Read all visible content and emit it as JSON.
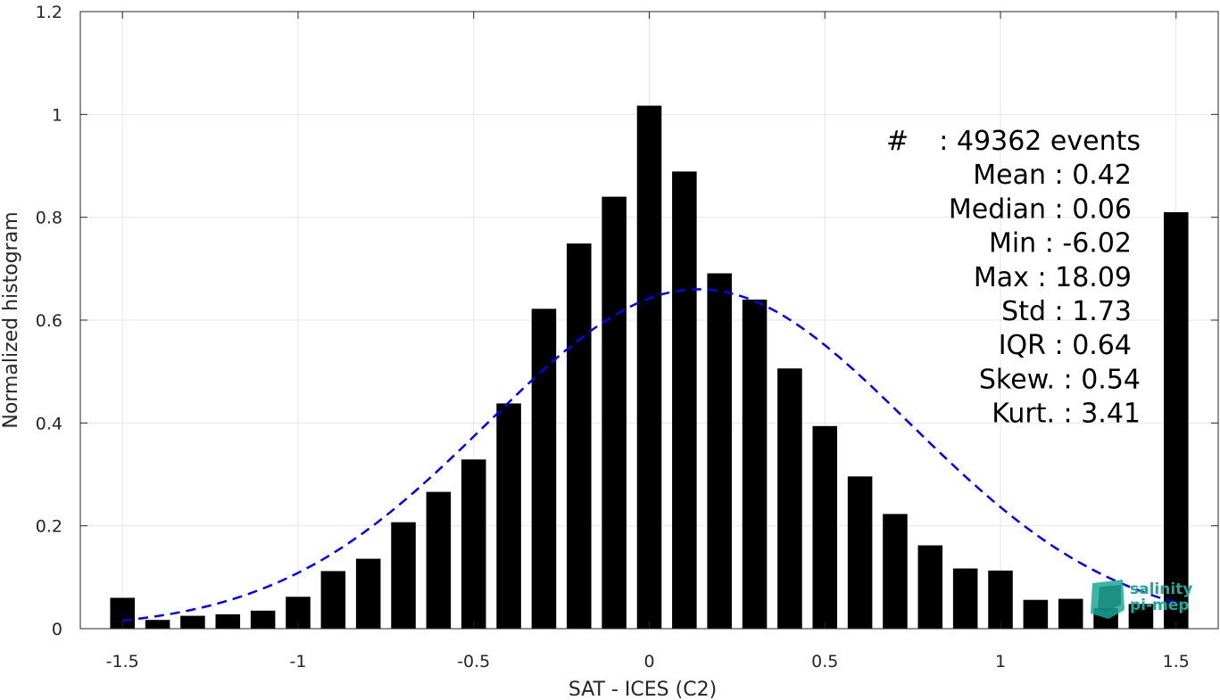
{
  "chart_data": {
    "type": "bar",
    "xlabel": "SAT - ICES (C2)",
    "ylabel": "Normalized histogram",
    "xlim": [
      -1.62,
      1.62
    ],
    "ylim": [
      0,
      1.2
    ],
    "grid": true,
    "xticks": [
      -1.5,
      -1,
      -0.5,
      0,
      0.5,
      1,
      1.5
    ],
    "xtick_labels": [
      "-1.5",
      "-1",
      "-0.5",
      "0",
      "0.5",
      "1",
      "1.5"
    ],
    "yticks": [
      0,
      0.2,
      0.4,
      0.6,
      0.8,
      1,
      1.2
    ],
    "ytick_labels": [
      "0",
      "0.2",
      "0.4",
      "0.6",
      "0.8",
      "1",
      "1.2"
    ],
    "bar_width": 0.07,
    "x": [
      -1.5,
      -1.4,
      -1.3,
      -1.2,
      -1.1,
      -1.0,
      -0.9,
      -0.8,
      -0.7,
      -0.6,
      -0.5,
      -0.4,
      -0.3,
      -0.2,
      -0.1,
      0.0,
      0.1,
      0.2,
      0.3,
      0.4,
      0.5,
      0.6,
      0.7,
      0.8,
      0.9,
      1.0,
      1.1,
      1.2,
      1.3,
      1.4,
      1.5
    ],
    "values": [
      0.06,
      0.017,
      0.025,
      0.028,
      0.035,
      0.062,
      0.112,
      0.136,
      0.207,
      0.266,
      0.329,
      0.438,
      0.622,
      0.749,
      0.84,
      1.017,
      0.889,
      0.691,
      0.64,
      0.506,
      0.394,
      0.296,
      0.223,
      0.162,
      0.117,
      0.113,
      0.056,
      0.058,
      0.04,
      0.048,
      0.81
    ],
    "fit_curve": {
      "style": "dashed",
      "color": "#0000FF",
      "x_range": [
        -1.5,
        1.5
      ],
      "mean": 0.14,
      "std": 0.6,
      "peak": 0.66
    },
    "colors": {
      "bars": "#000000",
      "fit": "#0000FF"
    },
    "annotations": [
      {
        "label": "#",
        "value": ": 49362 events"
      },
      {
        "label": "Mean",
        "value": ": 0.42"
      },
      {
        "label": "Median",
        "value": ": 0.06"
      },
      {
        "label": "Min",
        "value": ": -6.02"
      },
      {
        "label": "Max",
        "value": ": 18.09"
      },
      {
        "label": "Std",
        "value": ": 1.73"
      },
      {
        "label": "IQR",
        "value": ": 0.64"
      },
      {
        "label": "Skew.",
        "value": ": 0.54"
      },
      {
        "label": "Kurt.",
        "value": ": 3.41"
      }
    ]
  },
  "logo": {
    "line1": "salinity",
    "line2": "pi-mep",
    "color": "#1aa89a"
  }
}
